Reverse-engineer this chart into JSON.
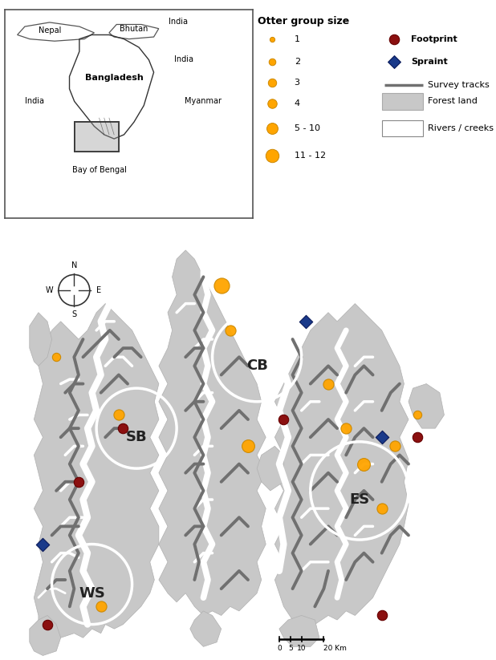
{
  "bg_color": "#ffffff",
  "forest_color": "#c8c8c8",
  "forest_edge": "#b0b0b0",
  "river_color": "#ffffff",
  "track_color": "#707070",
  "track_lw": 3.0,
  "orange_color": "#FFA500",
  "orange_edge": "#cc8800",
  "footprint_color": "#8B1010",
  "footprint_edge": "#660000",
  "spraint_color": "#1a3a8a",
  "spraint_edge": "#0a1a5a",
  "label_WS": "WS",
  "label_SB": "SB",
  "label_CB": "CB",
  "label_ES": "ES",
  "legend_title": "Otter group size",
  "legend_labels": [
    "1",
    "2",
    "3",
    "4",
    "5 - 10",
    "11 - 12"
  ],
  "legend_right_labels": [
    "Footprint",
    "Spraint",
    "Survey tracks",
    "Forest land",
    "Rivers / creeks"
  ]
}
